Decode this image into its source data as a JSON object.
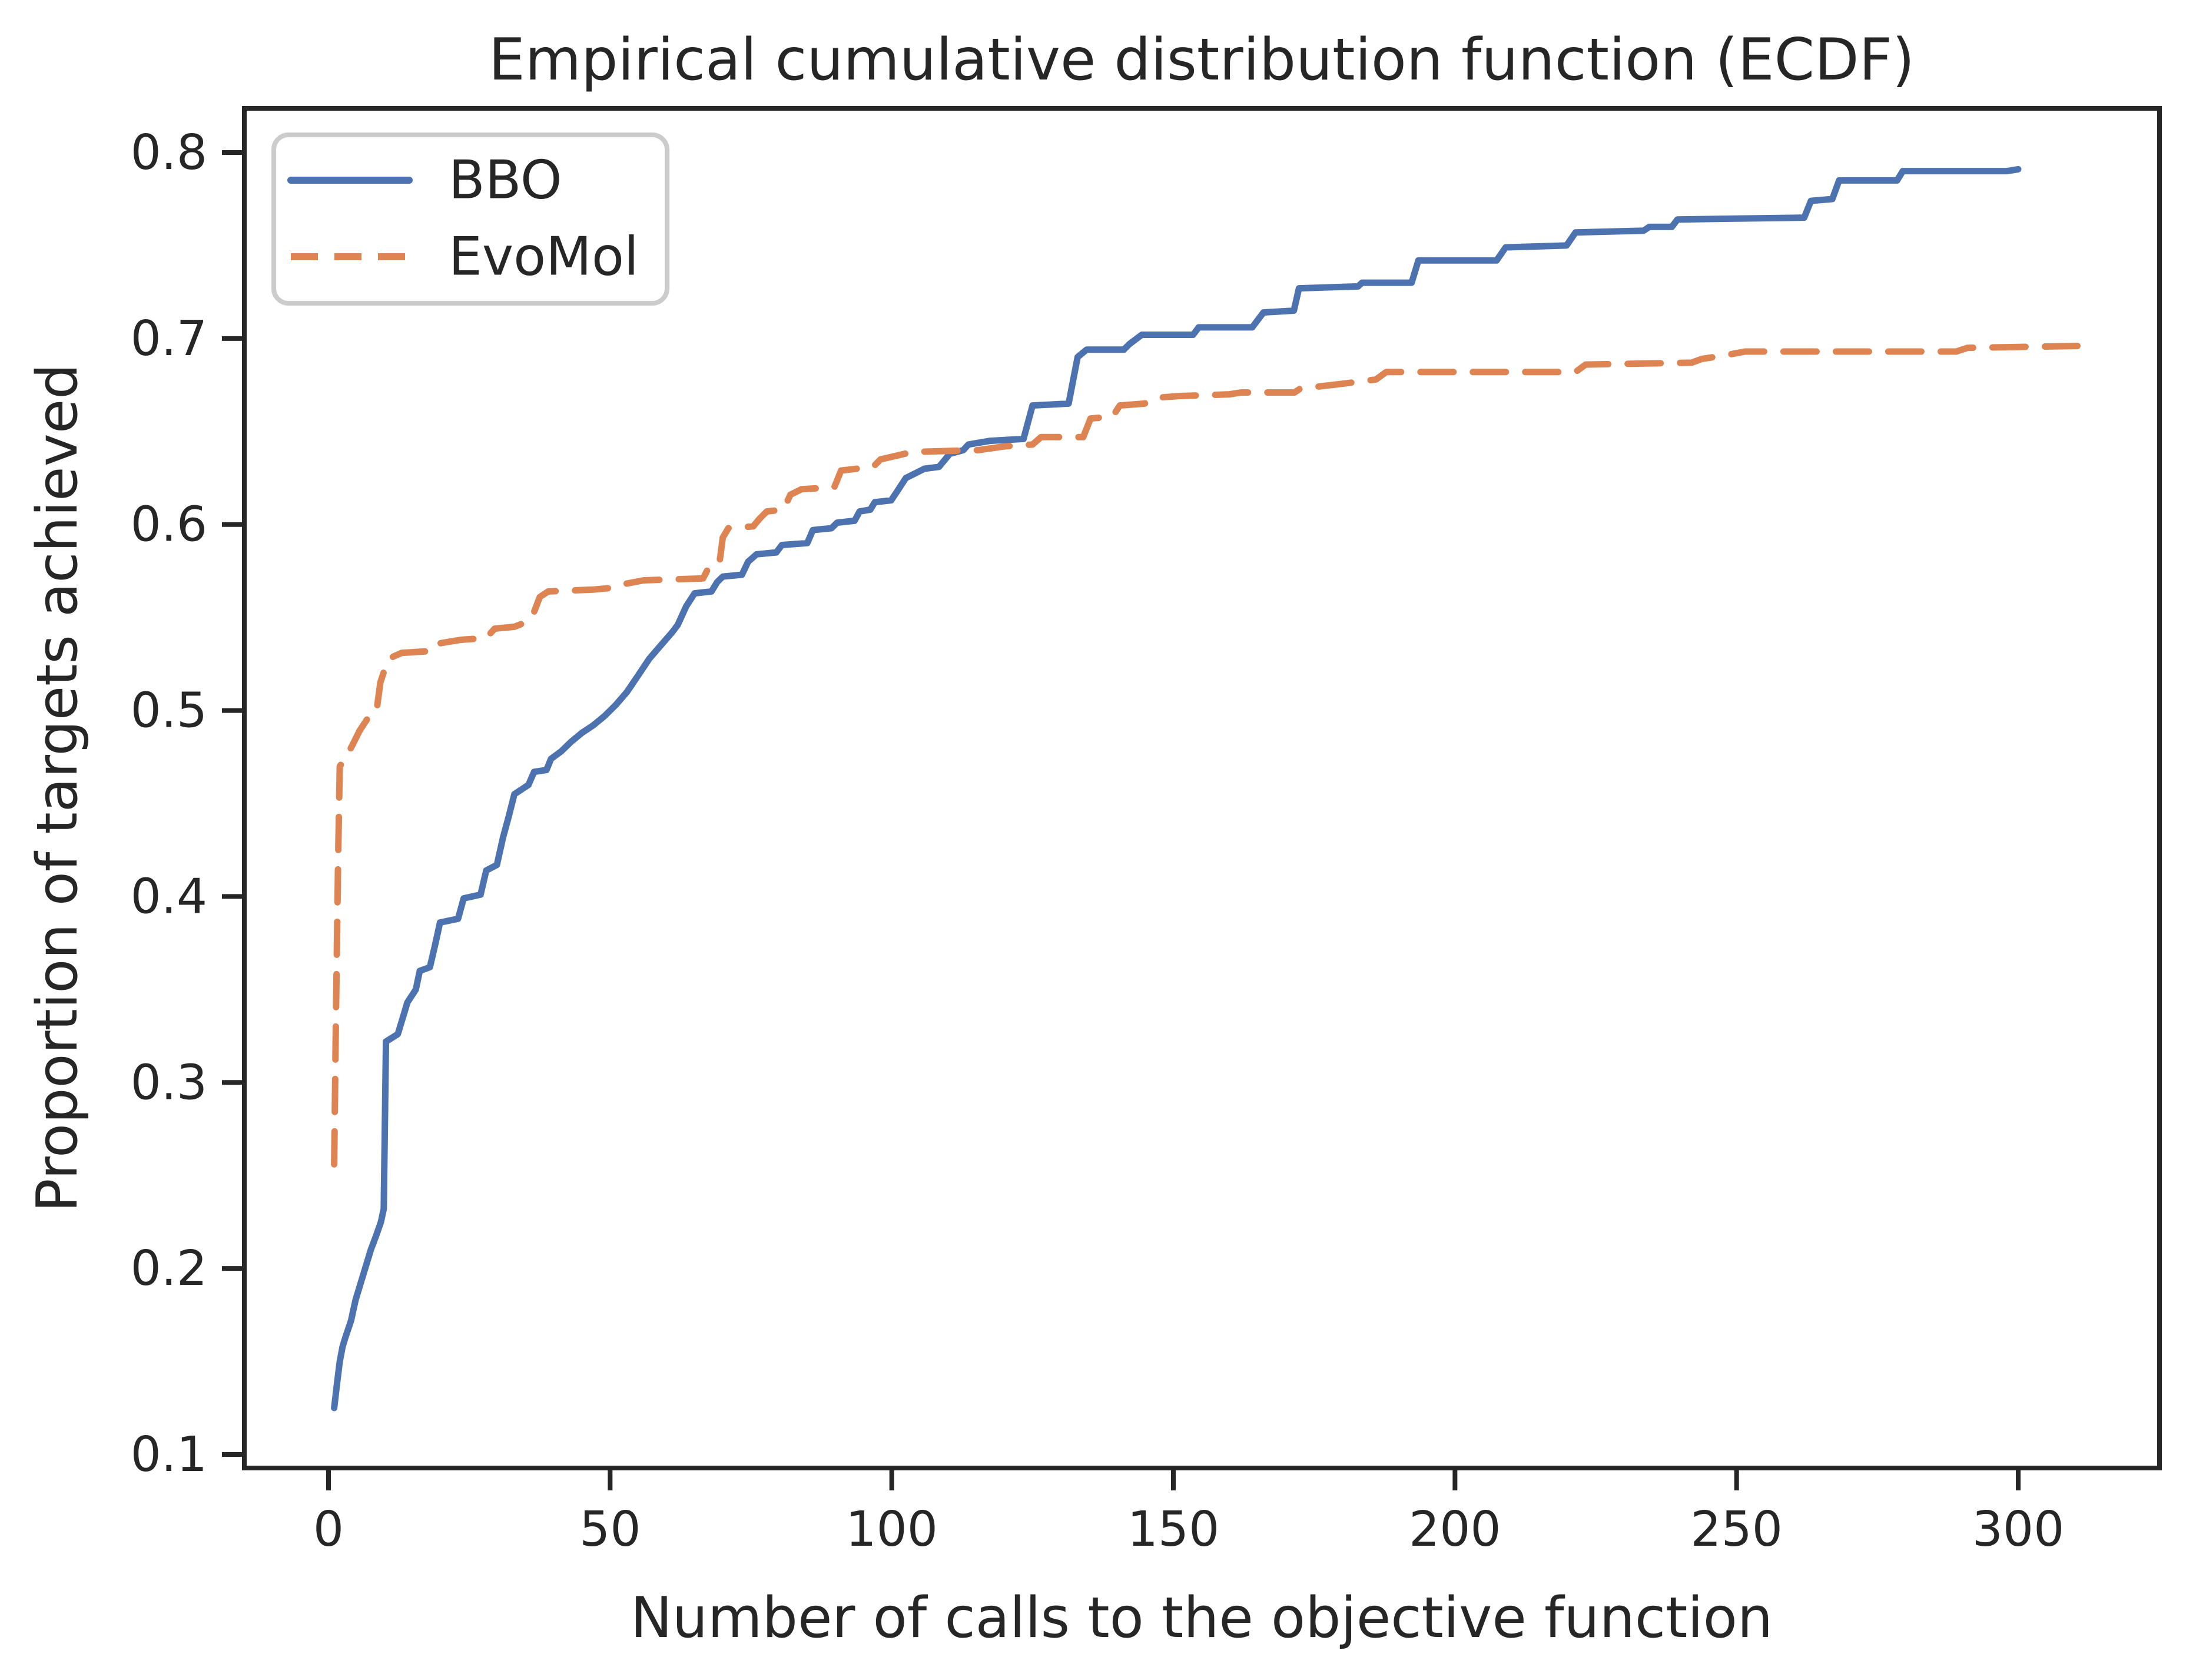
{
  "title": "Empirical cumulative distribution function (ECDF)",
  "colors": {
    "bbo_blue": "#4C72B0",
    "evomol_orange": "#DD8452",
    "spine": "#262626",
    "text": "#262626",
    "legend_border": "#CCCCCC",
    "background": "#FFFFFF"
  },
  "legend": {
    "entries": [
      {
        "label": "BBO",
        "line": "solid",
        "color": "#4C72B0"
      },
      {
        "label": "EvoMol",
        "line": "dashed",
        "color": "#DD8452"
      }
    ],
    "position": "upper left"
  },
  "chart_data": {
    "type": "line",
    "title": "Empirical cumulative distribution function (ECDF)",
    "xlabel": "Number of calls to the objective function",
    "ylabel": "Proportion of targets achieved",
    "xlim": [
      -15,
      325
    ],
    "ylim": [
      0.0927,
      0.8236
    ],
    "xticks": [
      0,
      50,
      100,
      150,
      200,
      250,
      300
    ],
    "yticks": [
      0.1,
      0.2,
      0.3,
      0.4,
      0.5,
      0.6,
      0.7,
      0.8
    ],
    "grid": false,
    "legend_position": "upper left",
    "series": [
      {
        "name": "BBO",
        "color": "#4C72B0",
        "style": "solid",
        "points": [
          [
            1,
            0.125
          ],
          [
            1.5,
            0.138
          ],
          [
            2,
            0.15
          ],
          [
            2.5,
            0.158
          ],
          [
            3,
            0.163
          ],
          [
            4,
            0.172
          ],
          [
            4.8,
            0.183
          ],
          [
            5.5,
            0.19
          ],
          [
            6.5,
            0.2
          ],
          [
            7.5,
            0.21
          ],
          [
            8.5,
            0.218
          ],
          [
            9.3,
            0.225
          ],
          [
            9.8,
            0.232
          ],
          [
            10.2,
            0.322
          ],
          [
            12.3,
            0.326
          ],
          [
            13.5,
            0.338
          ],
          [
            14,
            0.343
          ],
          [
            15.5,
            0.35
          ],
          [
            16.2,
            0.36
          ],
          [
            18,
            0.362
          ],
          [
            19,
            0.375
          ],
          [
            19.8,
            0.386
          ],
          [
            23,
            0.388
          ],
          [
            24,
            0.399
          ],
          [
            27,
            0.401
          ],
          [
            28,
            0.414
          ],
          [
            29.9,
            0.417
          ],
          [
            31,
            0.432
          ],
          [
            32,
            0.443
          ],
          [
            33,
            0.455
          ],
          [
            35.5,
            0.46
          ],
          [
            36.5,
            0.467
          ],
          [
            38.7,
            0.468
          ],
          [
            39.5,
            0.474
          ],
          [
            41.3,
            0.478
          ],
          [
            43,
            0.483
          ],
          [
            45,
            0.488
          ],
          [
            47,
            0.492
          ],
          [
            49,
            0.497
          ],
          [
            51,
            0.503
          ],
          [
            53,
            0.51
          ],
          [
            55,
            0.519
          ],
          [
            57,
            0.528
          ],
          [
            59,
            0.535
          ],
          [
            61,
            0.542
          ],
          [
            62,
            0.546
          ],
          [
            63.5,
            0.556
          ],
          [
            65,
            0.563
          ],
          [
            68,
            0.564
          ],
          [
            69,
            0.569
          ],
          [
            70,
            0.572
          ],
          [
            73.4,
            0.573
          ],
          [
            74.5,
            0.58
          ],
          [
            76,
            0.584
          ],
          [
            79.5,
            0.585
          ],
          [
            80.5,
            0.589
          ],
          [
            85,
            0.59
          ],
          [
            86,
            0.597
          ],
          [
            89.3,
            0.598
          ],
          [
            90.3,
            0.601
          ],
          [
            93.4,
            0.602
          ],
          [
            94.3,
            0.607
          ],
          [
            96.2,
            0.608
          ],
          [
            97,
            0.612
          ],
          [
            99.9,
            0.613
          ],
          [
            101,
            0.618
          ],
          [
            102.5,
            0.625
          ],
          [
            105.8,
            0.63
          ],
          [
            108.4,
            0.631
          ],
          [
            110.3,
            0.638
          ],
          [
            112.7,
            0.64
          ],
          [
            113.6,
            0.643
          ],
          [
            117.5,
            0.645
          ],
          [
            123.4,
            0.646
          ],
          [
            125,
            0.664
          ],
          [
            131.4,
            0.665
          ],
          [
            133,
            0.69
          ],
          [
            134.6,
            0.694
          ],
          [
            141.2,
            0.694
          ],
          [
            142.2,
            0.697
          ],
          [
            144.4,
            0.702
          ],
          [
            153.5,
            0.702
          ],
          [
            154.5,
            0.706
          ],
          [
            164,
            0.706
          ],
          [
            166,
            0.714
          ],
          [
            171.4,
            0.715
          ],
          [
            172.3,
            0.727
          ],
          [
            182.8,
            0.728
          ],
          [
            183.5,
            0.73
          ],
          [
            192.3,
            0.73
          ],
          [
            193.5,
            0.742
          ],
          [
            207.4,
            0.742
          ],
          [
            209,
            0.749
          ],
          [
            219.8,
            0.75
          ],
          [
            221.4,
            0.757
          ],
          [
            233.5,
            0.758
          ],
          [
            234.5,
            0.76
          ],
          [
            238.5,
            0.76
          ],
          [
            239.5,
            0.764
          ],
          [
            262,
            0.765
          ],
          [
            263.2,
            0.774
          ],
          [
            267,
            0.775
          ],
          [
            268.2,
            0.785
          ],
          [
            278.5,
            0.785
          ],
          [
            279.5,
            0.79
          ],
          [
            298,
            0.79
          ],
          [
            300,
            0.791
          ]
        ]
      },
      {
        "name": "EvoMol",
        "color": "#DD8452",
        "style": "dashed",
        "points": [
          [
            1,
            0.256
          ],
          [
            1.3,
            0.33
          ],
          [
            1.7,
            0.42
          ],
          [
            2,
            0.47
          ],
          [
            3,
            0.474
          ],
          [
            4.5,
            0.483
          ],
          [
            5.5,
            0.489
          ],
          [
            7,
            0.496
          ],
          [
            8.5,
            0.499
          ],
          [
            9.2,
            0.515
          ],
          [
            10.5,
            0.527
          ],
          [
            11.5,
            0.529
          ],
          [
            13,
            0.531
          ],
          [
            18.5,
            0.532
          ],
          [
            19.5,
            0.536
          ],
          [
            23.5,
            0.538
          ],
          [
            28,
            0.539
          ],
          [
            29.5,
            0.544
          ],
          [
            33,
            0.545
          ],
          [
            35.5,
            0.548
          ],
          [
            36.5,
            0.553
          ],
          [
            37.5,
            0.561
          ],
          [
            39,
            0.564
          ],
          [
            47,
            0.565
          ],
          [
            50.5,
            0.566
          ],
          [
            52.5,
            0.568
          ],
          [
            56,
            0.57
          ],
          [
            66.5,
            0.571
          ],
          [
            67.5,
            0.577
          ],
          [
            69.4,
            0.579
          ],
          [
            70,
            0.593
          ],
          [
            71,
            0.598
          ],
          [
            75.4,
            0.599
          ],
          [
            76.5,
            0.603
          ],
          [
            77.8,
            0.607
          ],
          [
            80.8,
            0.608
          ],
          [
            82,
            0.616
          ],
          [
            84,
            0.619
          ],
          [
            89.8,
            0.62
          ],
          [
            91,
            0.629
          ],
          [
            96.7,
            0.631
          ],
          [
            98,
            0.635
          ],
          [
            103.7,
            0.639
          ],
          [
            115.4,
            0.64
          ],
          [
            120,
            0.642
          ],
          [
            125,
            0.643
          ],
          [
            126.5,
            0.647
          ],
          [
            134,
            0.647
          ],
          [
            135.3,
            0.657
          ],
          [
            139.2,
            0.658
          ],
          [
            140.5,
            0.664
          ],
          [
            144.9,
            0.665
          ],
          [
            146.5,
            0.668
          ],
          [
            150.7,
            0.669
          ],
          [
            160,
            0.67
          ],
          [
            162,
            0.671
          ],
          [
            171.5,
            0.671
          ],
          [
            172.5,
            0.673
          ],
          [
            180.9,
            0.676
          ],
          [
            186,
            0.678
          ],
          [
            187.8,
            0.682
          ],
          [
            221.4,
            0.682
          ],
          [
            223.2,
            0.686
          ],
          [
            242,
            0.687
          ],
          [
            243.8,
            0.689
          ],
          [
            248,
            0.691
          ],
          [
            251.5,
            0.693
          ],
          [
            289,
            0.693
          ],
          [
            291,
            0.695
          ],
          [
            310.5,
            0.696
          ]
        ]
      }
    ]
  }
}
